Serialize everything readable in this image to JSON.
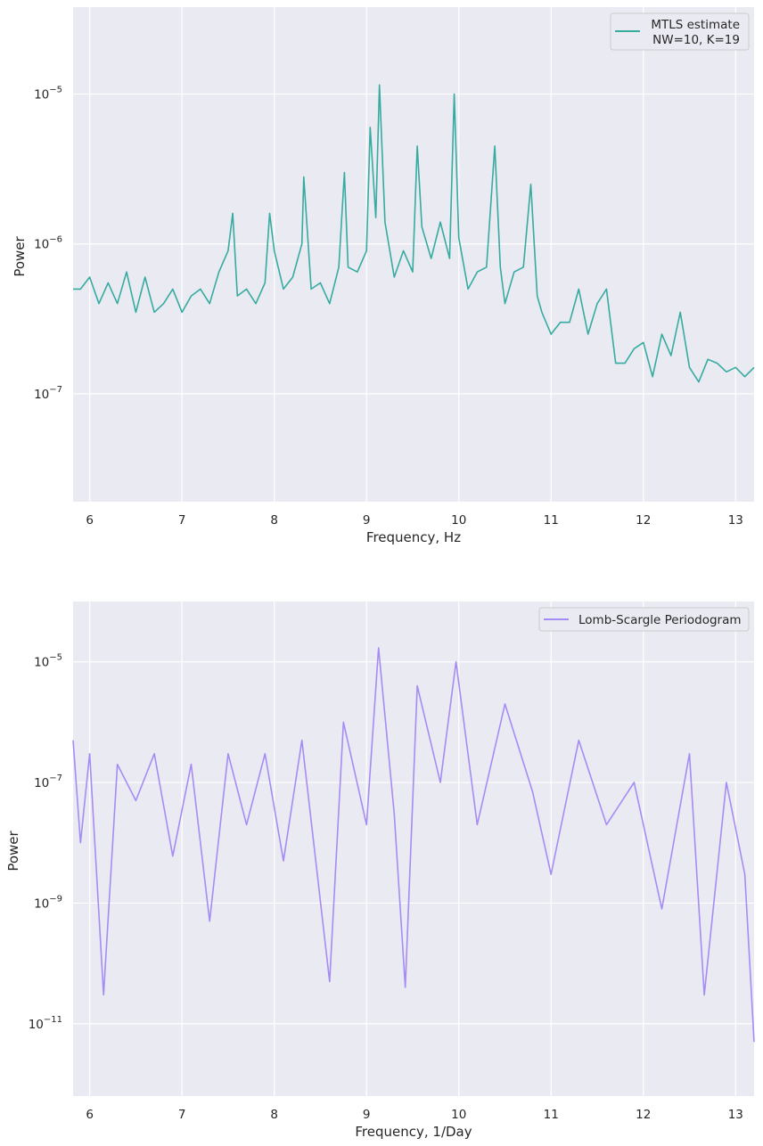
{
  "chart_data": [
    {
      "type": "line",
      "xlabel": "Frequency, Hz",
      "ylabel": "Power",
      "xlim": [
        5.82,
        13.2
      ],
      "ylim_log10": [
        -7.72,
        -4.42
      ],
      "log_y": true,
      "grid": true,
      "legend_position": "top-right",
      "x_ticks": [
        6,
        7,
        8,
        9,
        10,
        11,
        12,
        13
      ],
      "x_tick_labels": [
        "6",
        "7",
        "8",
        "9",
        "10",
        "11",
        "12",
        "13"
      ],
      "y_ticks_log10": [
        -7,
        -6,
        -5
      ],
      "y_tick_labels": [
        "10",
        "10",
        "10"
      ],
      "y_tick_exponents": [
        "−7",
        "−6",
        "−5"
      ],
      "series": [
        {
          "name": "MTLS estimate\n NW=10, K=19",
          "color": "#36aba0",
          "x": [
            5.82,
            5.9,
            6.0,
            6.1,
            6.2,
            6.3,
            6.4,
            6.5,
            6.6,
            6.7,
            6.8,
            6.9,
            7.0,
            7.1,
            7.2,
            7.3,
            7.4,
            7.5,
            7.55,
            7.6,
            7.7,
            7.8,
            7.9,
            7.95,
            8.0,
            8.1,
            8.2,
            8.3,
            8.32,
            8.4,
            8.5,
            8.6,
            8.7,
            8.76,
            8.8,
            8.9,
            9.0,
            9.04,
            9.1,
            9.14,
            9.2,
            9.3,
            9.4,
            9.5,
            9.55,
            9.6,
            9.7,
            9.8,
            9.9,
            9.95,
            10.0,
            10.1,
            10.2,
            10.3,
            10.39,
            10.45,
            10.5,
            10.6,
            10.7,
            10.78,
            10.85,
            10.9,
            11.0,
            11.1,
            11.2,
            11.3,
            11.4,
            11.5,
            11.6,
            11.7,
            11.8,
            11.9,
            12.0,
            12.1,
            12.2,
            12.3,
            12.4,
            12.5,
            12.6,
            12.7,
            12.8,
            12.9,
            13.0,
            13.1,
            13.2
          ],
          "y": [
            5e-07,
            5e-07,
            6e-07,
            4e-07,
            5.5e-07,
            4e-07,
            6.5e-07,
            3.5e-07,
            6e-07,
            3.5e-07,
            4e-07,
            5e-07,
            3.5e-07,
            4.5e-07,
            5e-07,
            4e-07,
            6.5e-07,
            9e-07,
            1.6e-06,
            4.5e-07,
            5e-07,
            4e-07,
            5.5e-07,
            1.6e-06,
            9e-07,
            5e-07,
            6e-07,
            1e-06,
            2.8e-06,
            5e-07,
            5.5e-07,
            4e-07,
            7e-07,
            3e-06,
            7e-07,
            6.5e-07,
            9e-07,
            6e-06,
            1.5e-06,
            1.15e-05,
            1.4e-06,
            6e-07,
            9e-07,
            6.5e-07,
            4.5e-06,
            1.3e-06,
            8e-07,
            1.4e-06,
            8e-07,
            1e-05,
            1.1e-06,
            5e-07,
            6.5e-07,
            7e-07,
            4.5e-06,
            7e-07,
            4e-07,
            6.5e-07,
            7e-07,
            2.5e-06,
            4.5e-07,
            3.5e-07,
            2.5e-07,
            3e-07,
            3e-07,
            5e-07,
            2.5e-07,
            4e-07,
            5e-07,
            1.6e-07,
            1.6e-07,
            2e-07,
            2.2e-07,
            1.3e-07,
            2.5e-07,
            1.8e-07,
            3.5e-07,
            1.5e-07,
            1.2e-07,
            1.7e-07,
            1.6e-07,
            1.4e-07,
            1.5e-07,
            1.3e-07,
            1.5e-07
          ]
        }
      ]
    },
    {
      "type": "line",
      "xlabel": "Frequency, 1/Day",
      "ylabel": "Power",
      "xlim": [
        5.82,
        13.2
      ],
      "ylim_log10": [
        -12.2,
        -4.0
      ],
      "log_y": true,
      "grid": true,
      "legend_position": "top-right",
      "x_ticks": [
        6,
        7,
        8,
        9,
        10,
        11,
        12,
        13
      ],
      "x_tick_labels": [
        "6",
        "7",
        "8",
        "9",
        "10",
        "11",
        "12",
        "13"
      ],
      "y_ticks_log10": [
        -11,
        -9,
        -7,
        -5
      ],
      "y_tick_labels": [
        "10",
        "10",
        "10",
        "10"
      ],
      "y_tick_exponents": [
        "−11",
        "−9",
        "−7",
        "−5"
      ],
      "series": [
        {
          "name": "Lomb-Scargle Periodogram",
          "color": "#a58cf5",
          "x": [
            5.82,
            5.9,
            6.0,
            6.15,
            6.3,
            6.5,
            6.7,
            6.9,
            7.1,
            7.3,
            7.5,
            7.7,
            7.9,
            8.1,
            8.3,
            8.6,
            8.75,
            9.0,
            9.13,
            9.3,
            9.42,
            9.55,
            9.8,
            9.97,
            10.2,
            10.5,
            10.8,
            11.0,
            11.3,
            11.6,
            11.9,
            12.2,
            12.5,
            12.66,
            12.9,
            13.1,
            13.2
          ],
          "y": [
            5e-07,
            1e-08,
            3e-07,
            3e-11,
            2e-07,
            5e-08,
            3e-07,
            6e-09,
            2e-07,
            5e-10,
            3e-07,
            2e-08,
            3e-07,
            5e-09,
            5e-07,
            5e-11,
            1e-06,
            2e-08,
            1.7e-05,
            3e-08,
            4e-11,
            4e-06,
            1e-07,
            1e-05,
            2e-08,
            2e-06,
            7e-08,
            3e-09,
            5e-07,
            2e-08,
            1e-07,
            8e-10,
            3e-07,
            3e-11,
            1e-07,
            3e-09,
            5e-12
          ]
        }
      ]
    }
  ]
}
